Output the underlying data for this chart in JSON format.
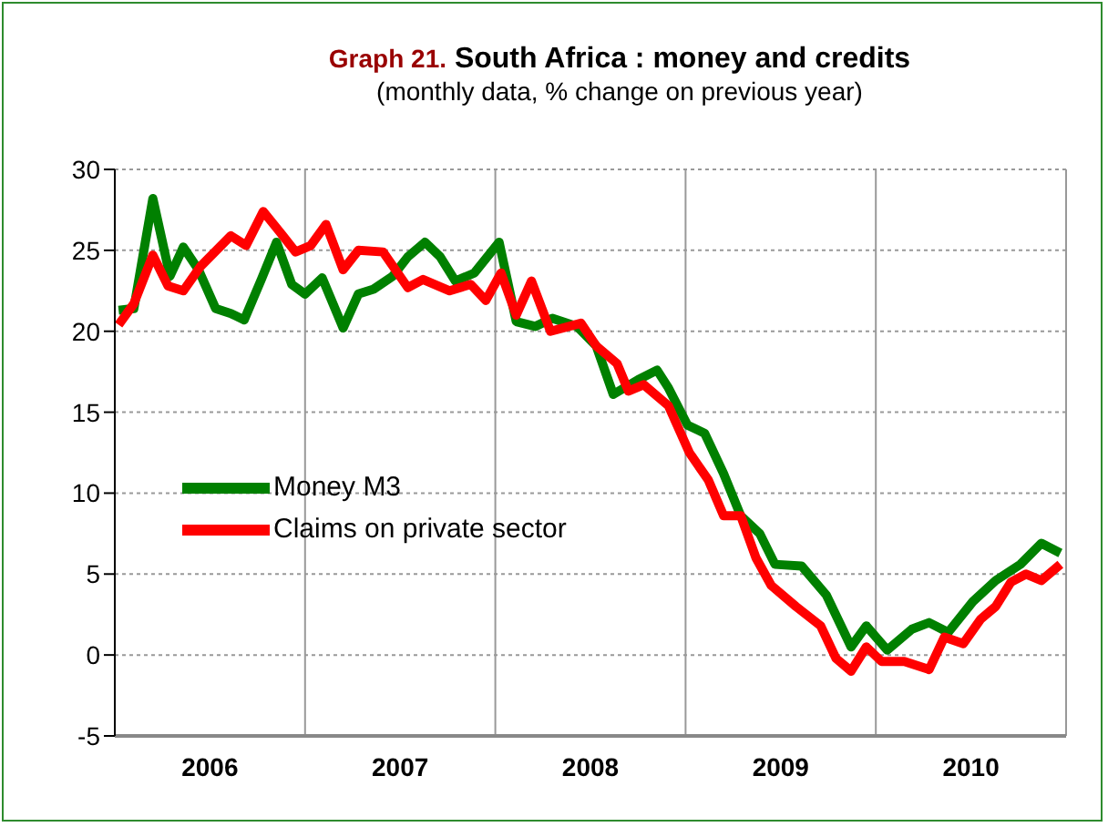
{
  "chart_data": {
    "type": "line",
    "title": "Graph 21. South Africa : money and credits",
    "subtitle": "(monthly data, % change on previous year)",
    "xlim": [
      2006,
      2011
    ],
    "xticks": [
      {
        "value": 2006,
        "label": null
      },
      {
        "value": 2007,
        "label": null
      },
      {
        "value": 2008,
        "label": null
      },
      {
        "value": 2009,
        "label": null
      },
      {
        "value": 2010,
        "label": null
      },
      {
        "value": 2011,
        "label": null
      },
      {
        "value": 2006.5,
        "label": "2006"
      },
      {
        "value": 2007.5,
        "label": "2007"
      },
      {
        "value": 2008.5,
        "label": "2008"
      },
      {
        "value": 2009.5,
        "label": "2009"
      },
      {
        "value": 2010.5,
        "label": "2010"
      }
    ],
    "ylim": [
      -5,
      30
    ],
    "yticks": [
      -5,
      0,
      5,
      10,
      15,
      20,
      25,
      30
    ],
    "grid": true,
    "legend": "left",
    "series": [
      {
        "name": "Money M3",
        "color": "#008000",
        "x": [
          2006.02,
          2006.1,
          2006.2,
          2006.29,
          2006.36,
          2006.44,
          2006.53,
          2006.61,
          2006.68,
          2006.77,
          2006.85,
          2006.93,
          2007.0,
          2007.09,
          2007.2,
          2007.28,
          2007.36,
          2007.46,
          2007.54,
          2007.63,
          2007.71,
          2007.79,
          2007.89,
          2008.02,
          2008.11,
          2008.21,
          2008.3,
          2008.43,
          2008.53,
          2008.62,
          2008.75,
          2008.85,
          2008.91,
          2009.01,
          2009.1,
          2009.2,
          2009.29,
          2009.39,
          2009.47,
          2009.61,
          2009.74,
          2009.87,
          2009.95,
          2010.06,
          2010.19,
          2010.28,
          2010.38,
          2010.51,
          2010.63,
          2010.76,
          2010.87,
          2010.97
        ],
        "values": [
          21.3,
          21.4,
          28.2,
          23.4,
          25.2,
          23.8,
          21.4,
          21.1,
          20.7,
          23.2,
          25.5,
          22.9,
          22.3,
          23.3,
          20.2,
          22.3,
          22.6,
          23.4,
          24.6,
          25.5,
          24.6,
          23.1,
          23.6,
          25.5,
          20.6,
          20.3,
          20.8,
          20.3,
          19.1,
          16.1,
          17.0,
          17.6,
          16.5,
          14.2,
          13.7,
          11.2,
          8.6,
          7.5,
          5.6,
          5.5,
          3.7,
          0.5,
          1.8,
          0.3,
          1.6,
          2.0,
          1.4,
          3.3,
          4.6,
          5.6,
          6.9,
          6.3
        ]
      },
      {
        "name": "Claims on private sector",
        "color": "#ff0000",
        "x": [
          2006.02,
          2006.1,
          2006.2,
          2006.28,
          2006.36,
          2006.45,
          2006.61,
          2006.69,
          2006.78,
          2006.87,
          2006.95,
          2007.03,
          2007.11,
          2007.2,
          2007.28,
          2007.41,
          2007.54,
          2007.62,
          2007.76,
          2007.87,
          2007.95,
          2008.03,
          2008.11,
          2008.19,
          2008.29,
          2008.45,
          2008.53,
          2008.64,
          2008.7,
          2008.78,
          2008.91,
          2009.02,
          2009.12,
          2009.2,
          2009.29,
          2009.37,
          2009.45,
          2009.58,
          2009.71,
          2009.79,
          2009.87,
          2009.95,
          2010.03,
          2010.15,
          2010.28,
          2010.36,
          2010.46,
          2010.55,
          2010.63,
          2010.71,
          2010.79,
          2010.87,
          2010.97
        ],
        "values": [
          20.4,
          21.7,
          24.7,
          22.8,
          22.5,
          24.0,
          25.9,
          25.3,
          27.4,
          26.1,
          24.9,
          25.3,
          26.6,
          23.8,
          25.0,
          24.9,
          22.7,
          23.2,
          22.5,
          22.9,
          21.9,
          23.6,
          21.0,
          23.1,
          20.0,
          20.5,
          19.1,
          18.0,
          16.3,
          16.7,
          15.4,
          12.5,
          10.8,
          8.6,
          8.6,
          6.0,
          4.3,
          3.0,
          1.8,
          -0.2,
          -1.0,
          0.5,
          -0.4,
          -0.4,
          -0.9,
          1.1,
          0.7,
          2.2,
          3.0,
          4.5,
          5.0,
          4.6,
          5.6
        ]
      }
    ]
  }
}
